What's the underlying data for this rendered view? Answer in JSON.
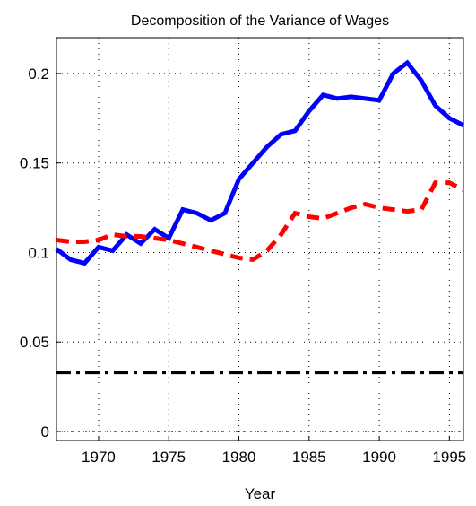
{
  "chart_data": {
    "type": "line",
    "title": "Decomposition of the Variance of Wages",
    "x_label": "Year",
    "x": [
      1967,
      1968,
      1969,
      1970,
      1971,
      1972,
      1973,
      1974,
      1975,
      1976,
      1977,
      1978,
      1979,
      1980,
      1981,
      1982,
      1983,
      1984,
      1985,
      1986,
      1987,
      1988,
      1989,
      1990,
      1991,
      1992,
      1993,
      1994,
      1995,
      1996
    ],
    "series": [
      {
        "color": "#0000ff",
        "dash": "solid",
        "values": [
          0.102,
          0.096,
          0.094,
          0.103,
          0.101,
          0.11,
          0.105,
          0.113,
          0.108,
          0.124,
          0.122,
          0.118,
          0.122,
          0.141,
          0.15,
          0.159,
          0.166,
          0.168,
          0.179,
          0.188,
          0.186,
          0.187,
          0.186,
          0.185,
          0.2,
          0.206,
          0.196,
          0.182,
          0.175,
          0.171
        ]
      },
      {
        "color": "#ff0000",
        "dash": "dashed",
        "values": [
          0.107,
          0.106,
          0.106,
          0.107,
          0.11,
          0.109,
          0.109,
          0.108,
          0.107,
          0.105,
          0.103,
          0.101,
          0.099,
          0.097,
          0.096,
          0.101,
          0.11,
          0.122,
          0.12,
          0.119,
          0.122,
          0.125,
          0.127,
          0.125,
          0.124,
          0.123,
          0.124,
          0.139,
          0.139,
          0.135
        ]
      },
      {
        "color": "#000000",
        "dash": "dashdot",
        "values": [
          0.033,
          0.033,
          0.033,
          0.033,
          0.033,
          0.033,
          0.033,
          0.033,
          0.033,
          0.033,
          0.033,
          0.033,
          0.033,
          0.033,
          0.033,
          0.033,
          0.033,
          0.033,
          0.033,
          0.033,
          0.033,
          0.033,
          0.033,
          0.033,
          0.033,
          0.033,
          0.033,
          0.033,
          0.033,
          0.033
        ]
      },
      {
        "color": "#ff00ff",
        "dash": "dotted",
        "values": [
          0,
          0,
          0,
          0,
          0,
          0,
          0,
          0,
          0,
          0,
          0,
          0,
          0,
          0,
          0,
          0,
          0,
          0,
          0,
          0,
          0,
          0,
          0,
          0,
          0,
          0,
          0,
          0,
          0,
          0
        ]
      }
    ],
    "xlim": [
      1967,
      1996
    ],
    "xticks": [
      1970,
      1975,
      1980,
      1985,
      1990,
      1995
    ],
    "ylim": [
      -0.005,
      0.22
    ],
    "yticks": [
      0,
      0.05,
      0.1,
      0.15,
      0.2
    ],
    "grid": true
  }
}
